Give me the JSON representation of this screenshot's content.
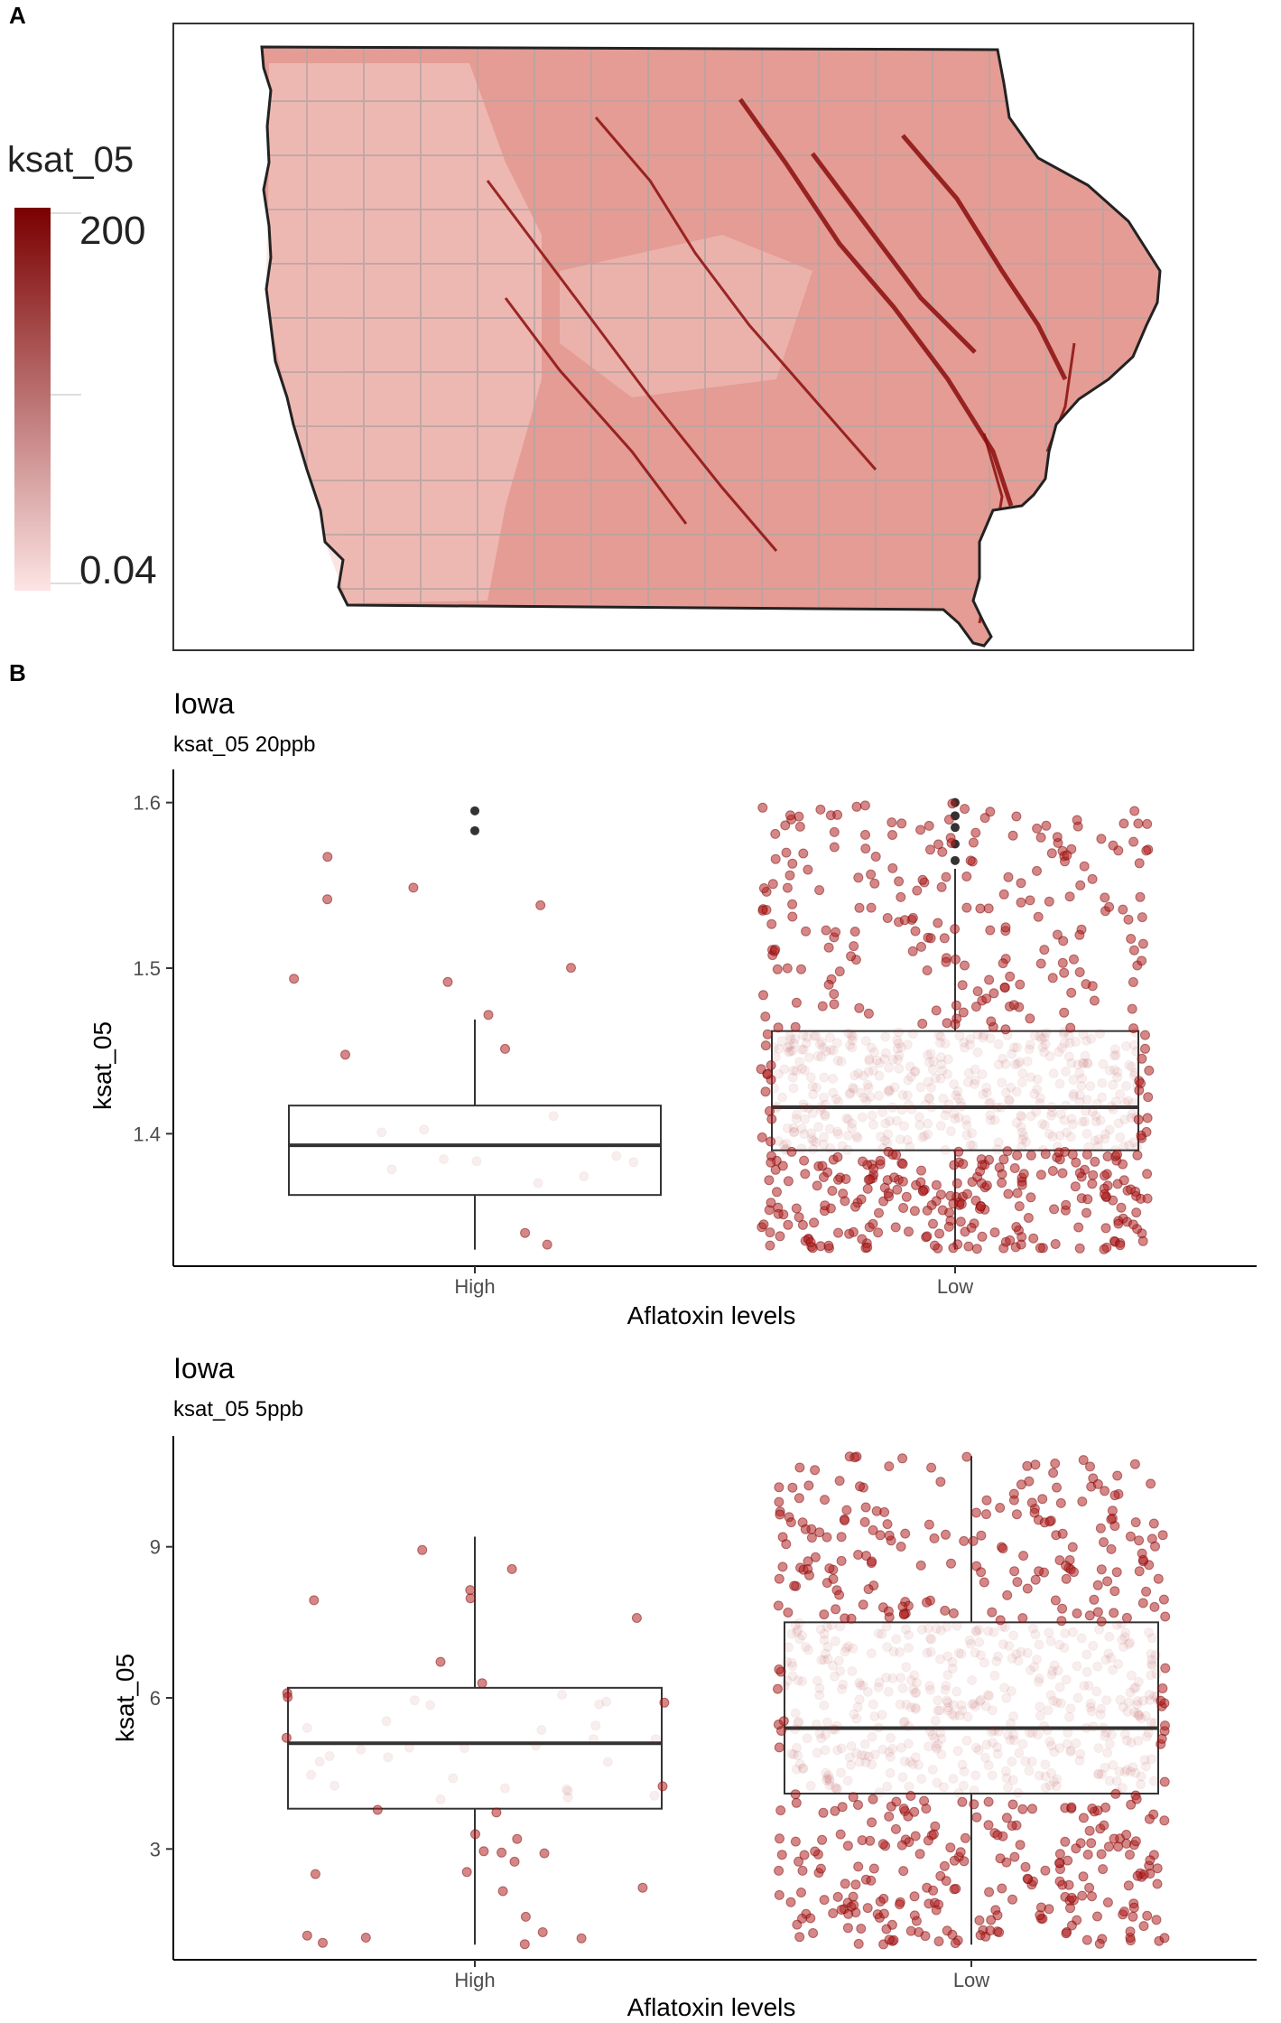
{
  "panel_a": {
    "label": "A",
    "legend": {
      "title": "ksat_05",
      "max_label": "200",
      "min_label": "0.04",
      "color_high": "#7a0000",
      "color_low": "#fde4e4"
    },
    "map_colors": {
      "base": "#e49c94",
      "light": "#f5cfca",
      "river": "#8b0d0d",
      "county_line": "#b8a4a2",
      "outline": "#222222"
    }
  },
  "panel_b": {
    "label": "B"
  },
  "chart_data": [
    {
      "type": "box",
      "title": "Iowa",
      "subtitle": "ksat_05 20ppb",
      "xlabel": "Aflatoxin levels",
      "ylabel": "ksat_05",
      "categories": [
        "High",
        "Low"
      ],
      "ylim": [
        1.32,
        1.62
      ],
      "yticks": [
        1.4,
        1.5,
        1.6
      ],
      "boxes": [
        {
          "name": "High",
          "whisker_low": 1.33,
          "q1": 1.363,
          "median": 1.393,
          "q3": 1.417,
          "whisker_high": 1.469,
          "outliers": [
            1.595,
            1.583
          ]
        },
        {
          "name": "Low",
          "whisker_low": 1.33,
          "q1": 1.39,
          "median": 1.416,
          "q3": 1.462,
          "whisker_high": 1.56,
          "outliers": [
            1.565,
            1.575,
            1.585,
            1.592,
            1.6
          ]
        }
      ],
      "point_color": "#b22222"
    },
    {
      "type": "box",
      "title": "Iowa",
      "subtitle": "ksat_05 5ppb",
      "xlabel": "Aflatoxin levels",
      "ylabel": "ksat_05",
      "categories": [
        "High",
        "Low"
      ],
      "ylim": [
        0.8,
        11.2
      ],
      "yticks": [
        3,
        6,
        9
      ],
      "boxes": [
        {
          "name": "High",
          "whisker_low": 1.1,
          "q1": 3.8,
          "median": 5.1,
          "q3": 6.2,
          "whisker_high": 9.2,
          "outliers": []
        },
        {
          "name": "Low",
          "whisker_low": 1.1,
          "q1": 4.1,
          "median": 5.4,
          "q3": 7.5,
          "whisker_high": 10.8,
          "outliers": []
        }
      ],
      "point_color": "#b22222"
    }
  ]
}
